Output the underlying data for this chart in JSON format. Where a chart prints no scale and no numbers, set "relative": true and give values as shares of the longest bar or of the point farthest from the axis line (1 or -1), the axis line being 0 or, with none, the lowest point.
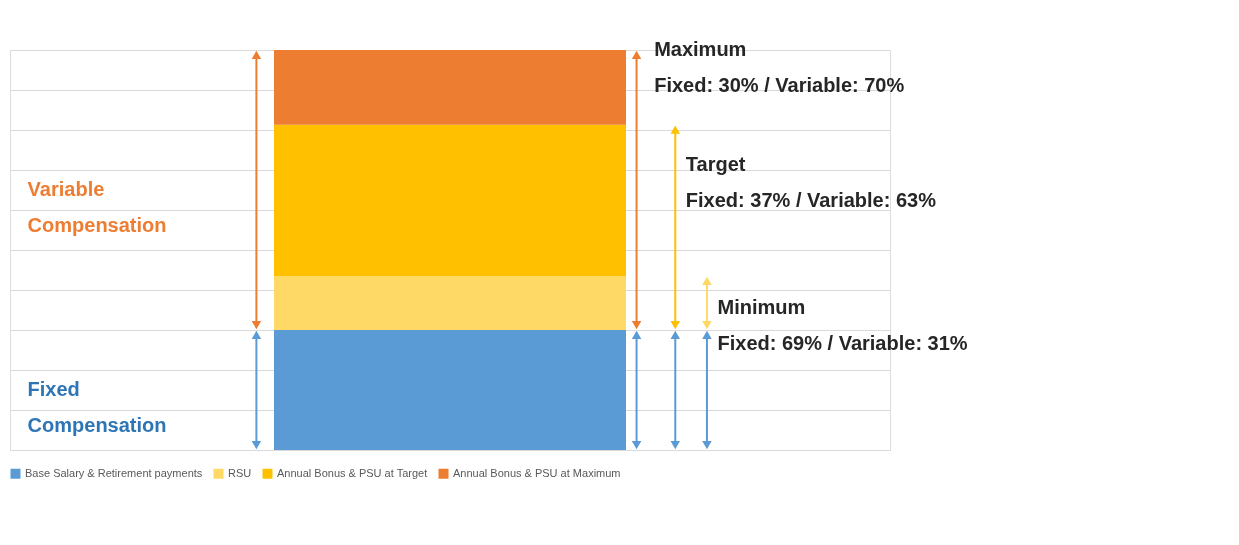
{
  "chart_data": {
    "type": "bar",
    "stacked": true,
    "relative": true,
    "categories": [
      null
    ],
    "series": [
      {
        "name": "Base Salary & Retirement payments",
        "color": "#5b9bd5",
        "values": [
          0.3
        ]
      },
      {
        "name": "RSU",
        "color": "#ffd966",
        "values": [
          0.135
        ]
      },
      {
        "name": "Annual Bonus & PSU at Target",
        "color": "#ffc000",
        "values": [
          0.378
        ]
      },
      {
        "name": "Annual Bonus & PSU at Maximum",
        "color": "#ed7d31",
        "values": [
          0.187
        ]
      }
    ],
    "annotations": [
      "Variable Compensation",
      "Fixed Compensation",
      "Maximum",
      "Fixed: 30% / Variable: 70%",
      "Target",
      "Fixed: 37% / Variable: 63%",
      "Minimum",
      "Fixed: 69% / Variable: 31%"
    ],
    "grid": "y",
    "legend": "bottom"
  }
}
